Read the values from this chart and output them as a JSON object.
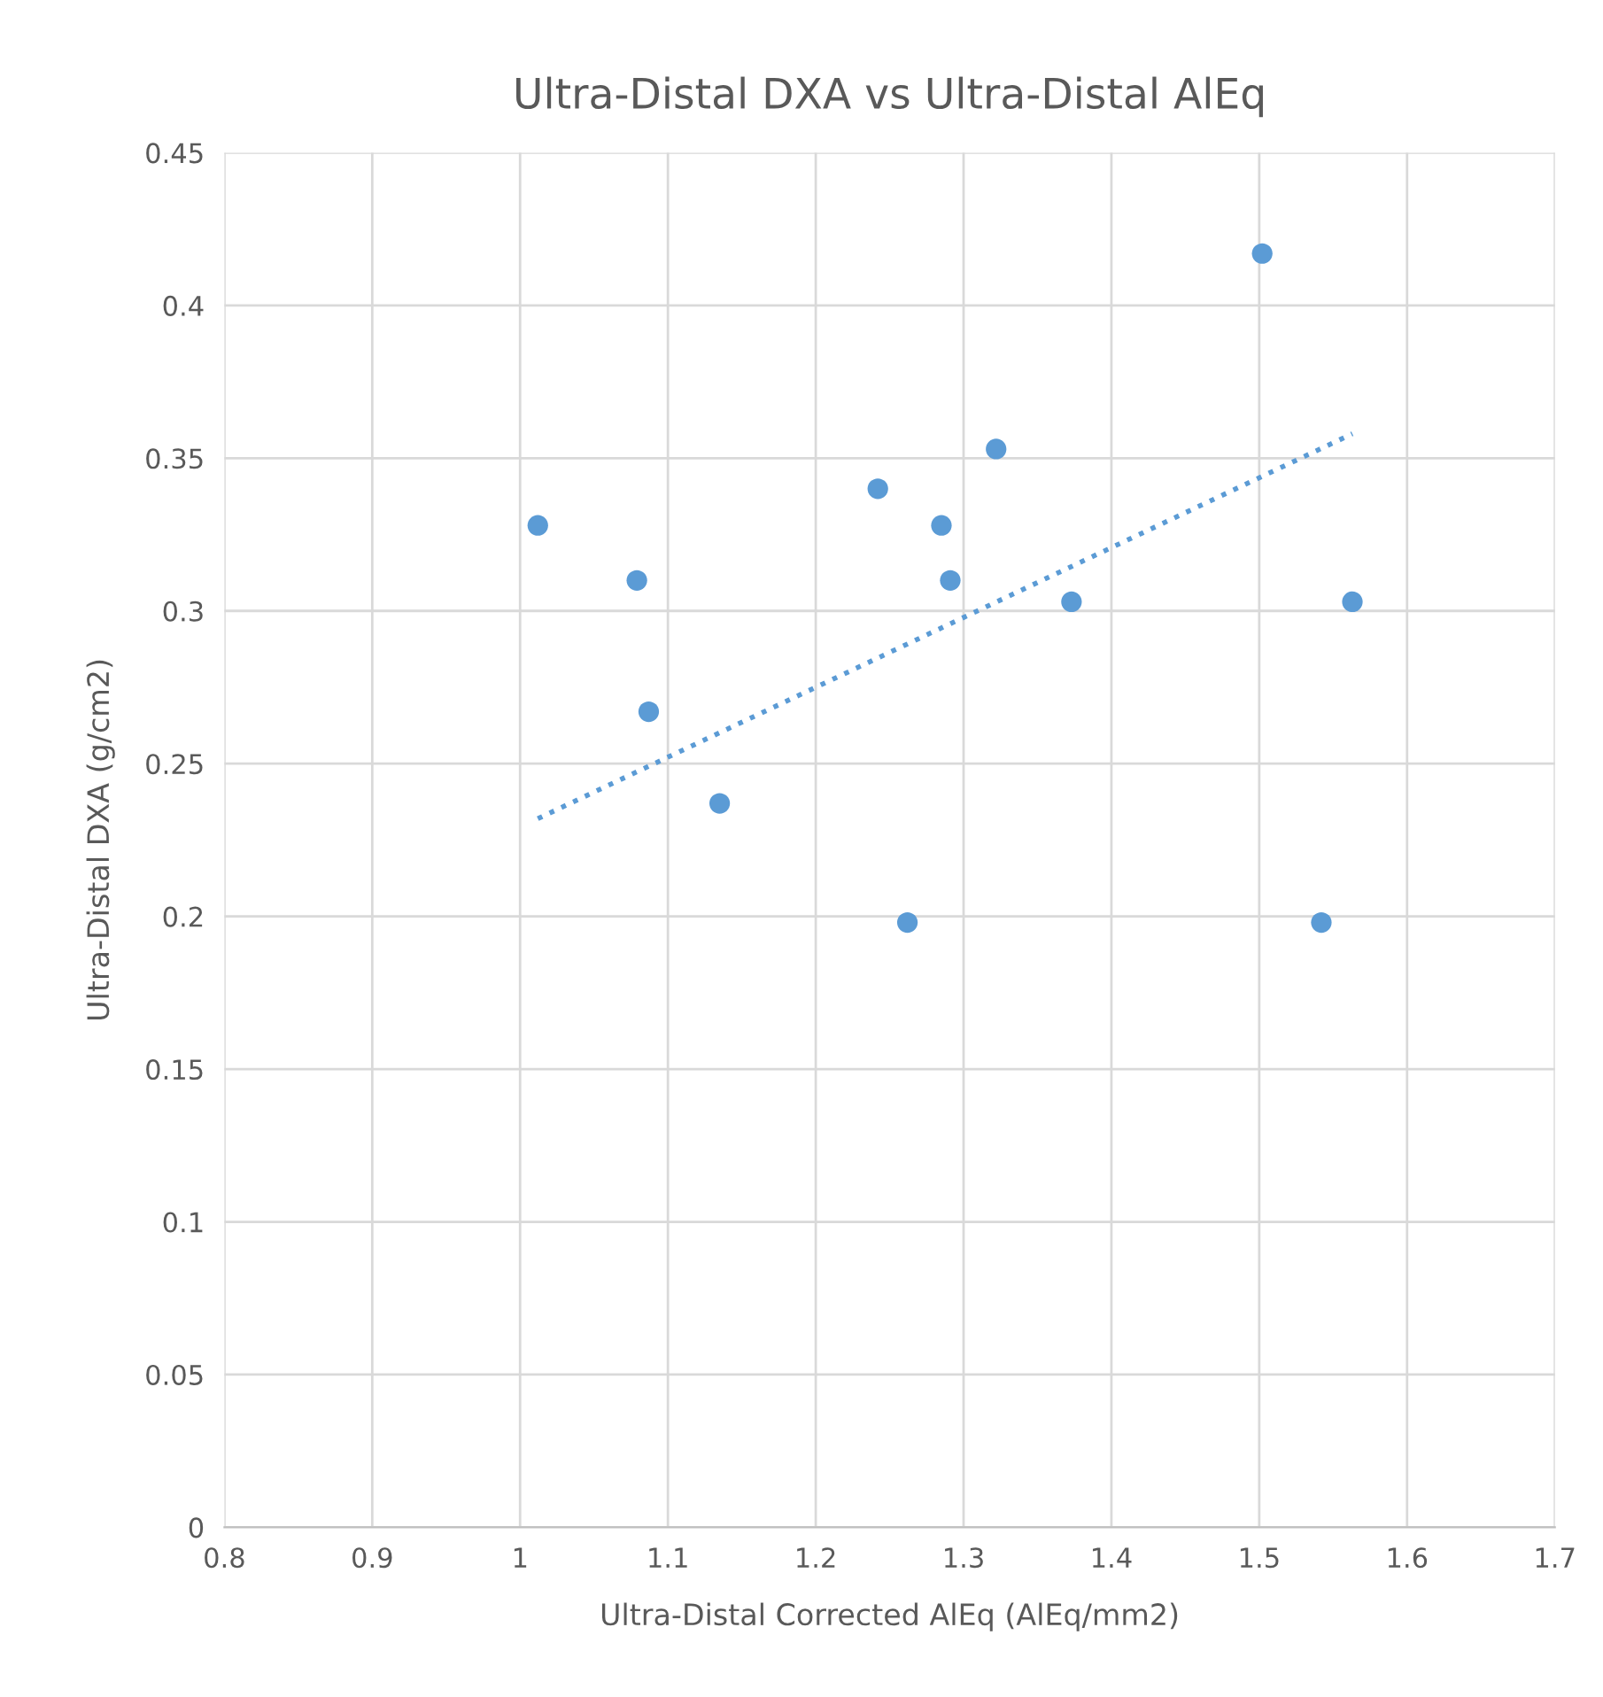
{
  "chart_data": {
    "type": "scatter",
    "title": "Ultra-Distal DXA vs Ultra-Distal AlEq",
    "xlabel": "Ultra-Distal Corrected AlEq (AlEq/mm2)",
    "ylabel": "Ultra-Distal DXA (g/cm2)",
    "series": [
      {
        "color": "#5b9bd5",
        "marker": "circle",
        "x": [
          1.012,
          1.079,
          1.087,
          1.135,
          1.242,
          1.262,
          1.285,
          1.291,
          1.322,
          1.373,
          1.502,
          1.542,
          1.563
        ],
        "values": [
          0.328,
          0.31,
          0.267,
          0.237,
          0.34,
          0.198,
          0.328,
          0.31,
          0.353,
          0.303,
          0.417,
          0.198,
          0.303
        ]
      },
      {
        "type": "line",
        "color": "#5b9bd5",
        "marker": "none",
        "line_style": "dotted",
        "x": [
          1.012,
          1.563
        ],
        "values": [
          0.232,
          0.358
        ]
      }
    ],
    "xlim": [
      0.8,
      1.7
    ],
    "xticks": [
      0.8,
      0.9,
      1,
      1.1,
      1.2,
      1.3,
      1.4,
      1.5,
      1.6,
      1.7
    ],
    "ylim": [
      0,
      0.45
    ],
    "yticks": [
      0,
      0.05,
      0.1,
      0.15,
      0.2,
      0.25,
      0.3,
      0.35,
      0.4,
      0.45
    ],
    "grid": true,
    "legend": false
  }
}
